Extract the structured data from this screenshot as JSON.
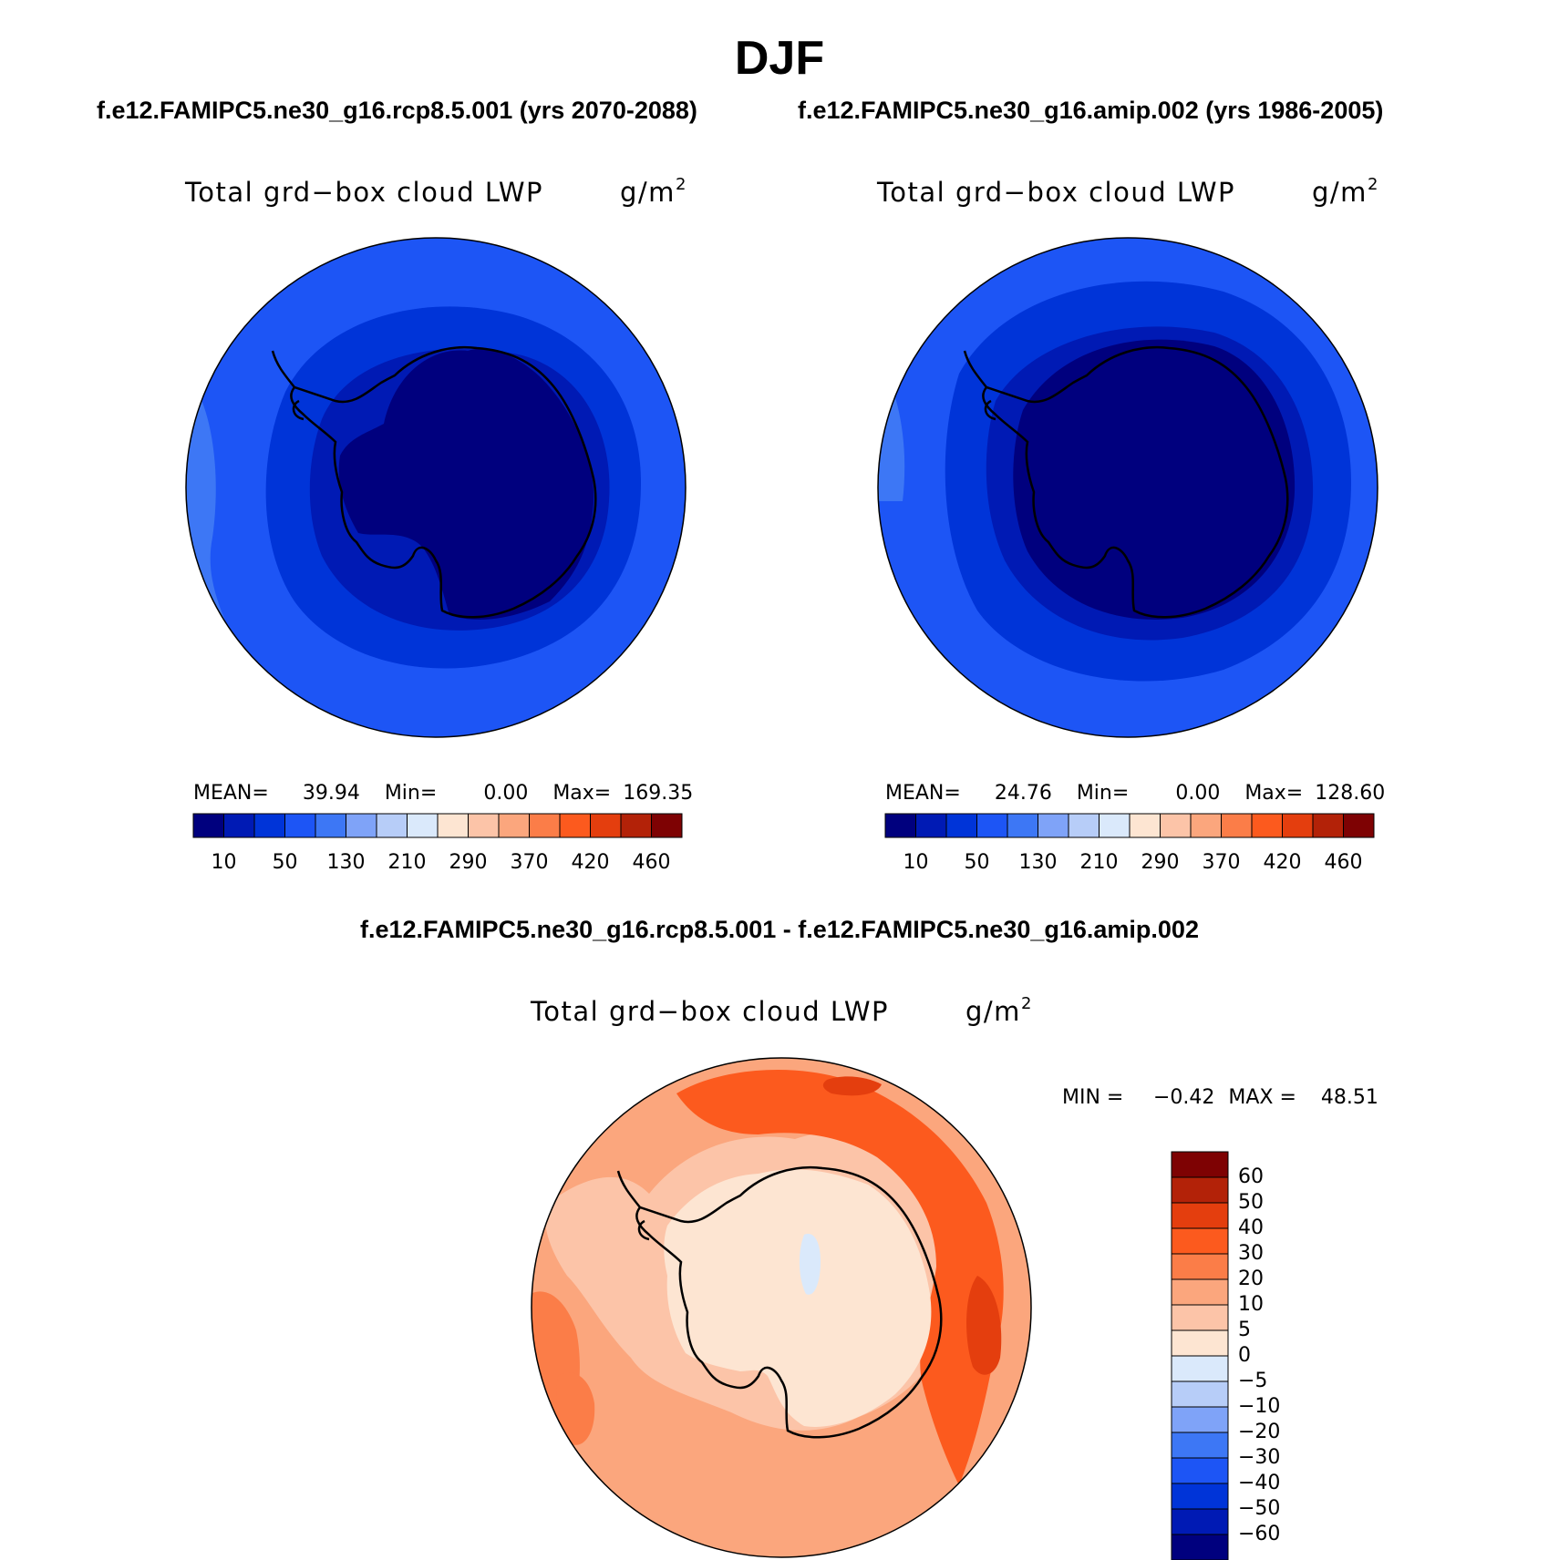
{
  "figure": {
    "title": "DJF",
    "subtitle_left": "f.e12.FAMIPC5.ne30_g16.rcp8.5.001 (yrs 2070-2088)",
    "subtitle_right": "f.e12.FAMIPC5.ne30_g16.amip.002 (yrs 1986-2005)",
    "diff_subtitle": "f.e12.FAMIPC5.ne30_g16.rcp8.5.001 - f.e12.FAMIPC5.ne30_g16.amip.002"
  },
  "panels": [
    {
      "variable": "Total grd−box cloud LWP",
      "units_base": "g/m",
      "units_exp": "2",
      "mean_label": "MEAN=",
      "mean": "39.94",
      "min_label": "Min=",
      "min": "0.00",
      "max_label": "Max=",
      "max": "169.35"
    },
    {
      "variable": "Total grd−box cloud LWP",
      "units_base": "g/m",
      "units_exp": "2",
      "mean_label": "MEAN=",
      "mean": "24.76",
      "min_label": "Min=",
      "min": "0.00",
      "max_label": "Max=",
      "max": "128.60"
    }
  ],
  "diff_panel": {
    "variable": "Total grd−box cloud LWP",
    "units_base": "g/m",
    "units_exp": "2",
    "min_label": "MIN =",
    "min": "−0.42",
    "max_label": "MAX =",
    "max": "48.51"
  },
  "colorbar_main": {
    "colors": [
      "#00007e",
      "#001ab4",
      "#0034d8",
      "#1d55f5",
      "#3d77f5",
      "#7fa3f8",
      "#b7cdf8",
      "#dae9fb",
      "#fde5d2",
      "#fcc4a8",
      "#fba67d",
      "#fb7d48",
      "#fc5a1e",
      "#e43e0e",
      "#b32208",
      "#7e0203"
    ],
    "tick_labels": [
      "10",
      "50",
      "130",
      "210",
      "290",
      "370",
      "420",
      "460"
    ]
  },
  "colorbar_diff": {
    "colors_top_to_bottom": [
      "#7e0203",
      "#b32208",
      "#e43e0e",
      "#fc5a1e",
      "#fb7d48",
      "#fba67d",
      "#fcc4a8",
      "#fde5d2",
      "#dae9fb",
      "#b7cdf8",
      "#7fa3f8",
      "#3d77f5",
      "#1d55f5",
      "#0034d8",
      "#001ab4",
      "#00007e"
    ],
    "tick_labels": [
      "60",
      "50",
      "40",
      "30",
      "20",
      "10",
      "5",
      "0",
      "−5",
      "−10",
      "−20",
      "−30",
      "−40",
      "−50",
      "−60"
    ]
  },
  "map_colors": {
    "p1": [
      "#1d55f5",
      "#3d77f5",
      "#0034d8",
      "#001ab4",
      "#00007e"
    ],
    "p2": [
      "#1d55f5",
      "#3d77f5",
      "#0034d8",
      "#001ab4",
      "#00007e"
    ],
    "diff": [
      "#fba67d",
      "#fcc4a8",
      "#fb7d48",
      "#fc5a1e",
      "#e43e0e",
      "#fde5d2",
      "#dae9fb"
    ]
  }
}
